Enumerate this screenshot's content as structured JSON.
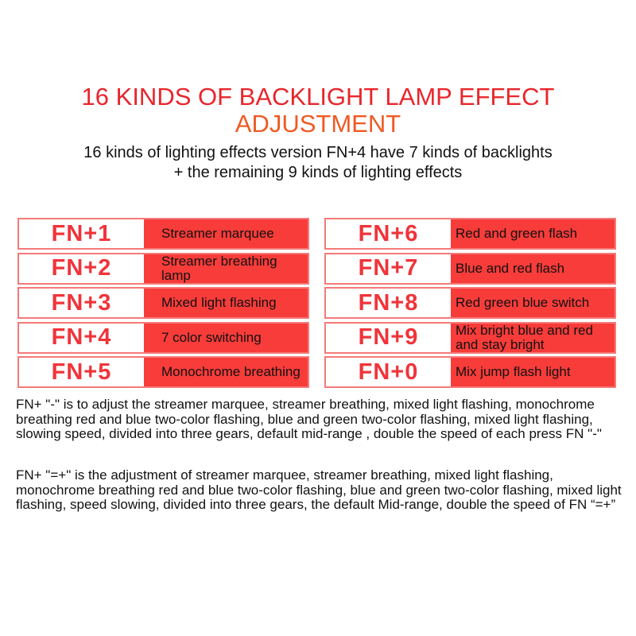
{
  "title_line1": "16 KINDS OF BACKLIGHT LAMP EFFECT",
  "title_line2": "ADJUSTMENT",
  "subtitle": "16 kinds of lighting effects version FN+4 have 7 kinds of backlights + the remaining 9 kinds of lighting effects",
  "left": [
    {
      "key": "FN+1",
      "desc": "Streamer marquee"
    },
    {
      "key": "FN+2",
      "desc": "Streamer breathing lamp"
    },
    {
      "key": "FN+3",
      "desc": "Mixed light flashing"
    },
    {
      "key": "FN+4",
      "desc": "7 color switching"
    },
    {
      "key": "FN+5",
      "desc": "Monochrome breathing"
    }
  ],
  "right": [
    {
      "key": "FN+6",
      "desc": "Red and green flash"
    },
    {
      "key": "FN+7",
      "desc": "Blue and red flash"
    },
    {
      "key": "FN+8",
      "desc": "Red green blue switch"
    },
    {
      "key": "FN+9",
      "desc": "Mix bright blue and red and stay bright"
    },
    {
      "key": "FN+0",
      "desc": "Mix jump flash light"
    }
  ],
  "note1": "FN+ \"-\" is to adjust the streamer marquee, streamer breathing, mixed light flashing, monochrome breathing red and blue two-color flashing, blue and green two-color flashing, mixed light flashing, slowing speed, divided into three gears, default mid-range , double the speed of each press FN \"-\"",
  "note2": "FN+ \"=+\" is the adjustment of streamer marquee, streamer breathing, mixed light flashing, monochrome breathing red and blue two-color flashing, blue and green two-color flashing, mixed light flashing, speed slowing, divided into three gears, the default Mid-range, double the speed of FN “=+”",
  "colors": {
    "title": "#e8262c",
    "title2": "#ef5a24",
    "cell": "#f83c3a",
    "key": "#f0343a"
  }
}
